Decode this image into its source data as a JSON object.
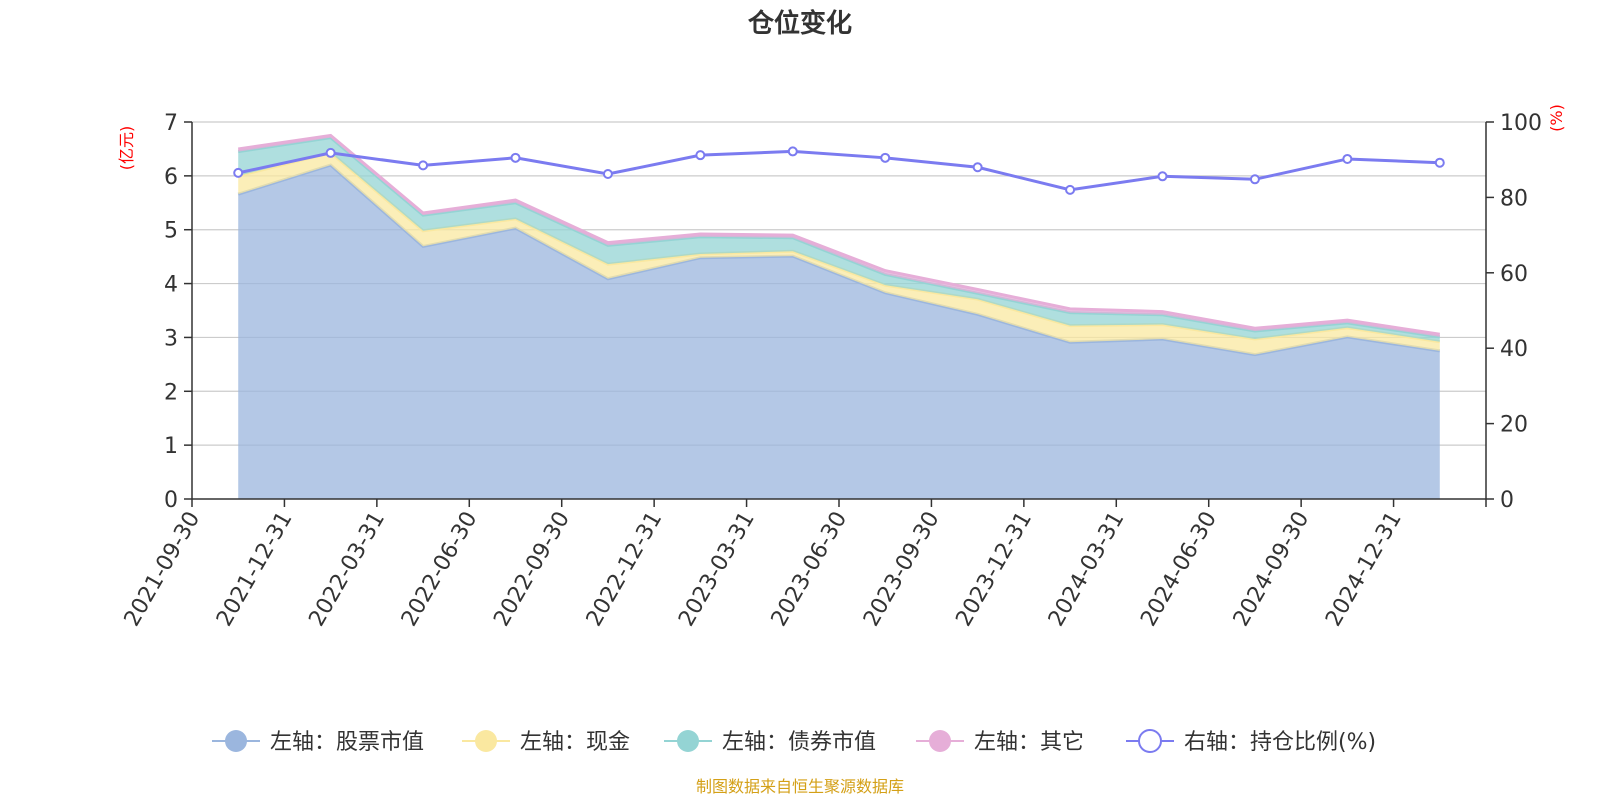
{
  "chart_data": {
    "type": "area",
    "title": "仓位变化",
    "categories": [
      "2021-09-30",
      "2021-12-31",
      "2022-03-31",
      "2022-06-30",
      "2022-09-30",
      "2022-12-31",
      "2023-03-31",
      "2023-06-30",
      "2023-09-30",
      "2023-12-31",
      "2024-03-31",
      "2024-06-30",
      "2024-09-30",
      "2024-12-31"
    ],
    "left_axis": {
      "unit": "(亿元)",
      "ylim": [
        0,
        7
      ],
      "ticks": [
        0,
        1,
        2,
        3,
        4,
        5,
        6,
        7
      ]
    },
    "right_axis": {
      "unit": "(%)",
      "ylim": [
        0,
        100
      ],
      "ticks": [
        0,
        20,
        40,
        60,
        80,
        100
      ]
    },
    "series": [
      {
        "name": "左轴：股票市值",
        "axis": "left",
        "type": "stacked-area",
        "color": "#9bb6de",
        "values": [
          5.66,
          6.2,
          4.69,
          5.03,
          4.09,
          4.48,
          4.51,
          3.83,
          3.43,
          2.91,
          2.97,
          2.68,
          3.01,
          2.75
        ]
      },
      {
        "name": "左轴：现金",
        "axis": "left",
        "type": "stacked-area",
        "color": "#fae8a0",
        "values": [
          0.34,
          0.23,
          0.29,
          0.17,
          0.27,
          0.07,
          0.09,
          0.14,
          0.28,
          0.31,
          0.27,
          0.29,
          0.17,
          0.17
        ]
      },
      {
        "name": "左轴：债券市值",
        "axis": "left",
        "type": "stacked-area",
        "color": "#94d4d4",
        "values": [
          0.45,
          0.28,
          0.29,
          0.3,
          0.35,
          0.32,
          0.25,
          0.2,
          0.11,
          0.24,
          0.18,
          0.15,
          0.09,
          0.09
        ]
      },
      {
        "name": "左轴：其它",
        "axis": "left",
        "type": "stacked-area",
        "color": "#e6aed8",
        "values": [
          0.05,
          0.04,
          0.04,
          0.05,
          0.05,
          0.05,
          0.05,
          0.07,
          0.07,
          0.07,
          0.06,
          0.05,
          0.05,
          0.05
        ]
      },
      {
        "name": "右轴：持仓比例(%)",
        "axis": "right",
        "type": "line",
        "color": "#7b7bf0",
        "values": [
          86.5,
          91.8,
          88.5,
          90.5,
          86.2,
          91.2,
          92.2,
          90.5,
          88.0,
          82.0,
          85.6,
          84.8,
          90.2,
          89.2
        ]
      }
    ],
    "legend": {
      "position": "bottom-center"
    }
  },
  "source_note": "制图数据来自恒生聚源数据库"
}
